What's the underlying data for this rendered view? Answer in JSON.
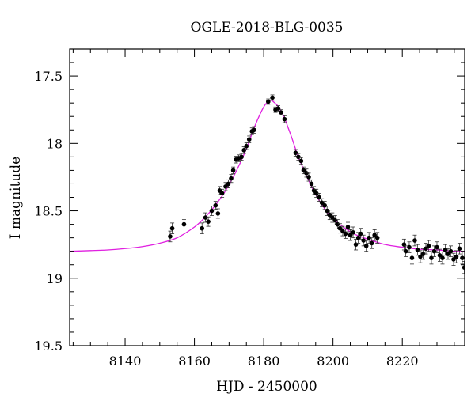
{
  "chart_data": {
    "type": "scatter",
    "title": "OGLE-2018-BLG-0035",
    "xlabel": "HJD - 2450000",
    "ylabel": "I magnitude",
    "xlim": [
      8124,
      8238
    ],
    "ylim": [
      19.5,
      17.3
    ],
    "y_inverted": true,
    "grid": false,
    "x_major_ticks": [
      8140,
      8160,
      8180,
      8200,
      8220
    ],
    "x_tick_labels": [
      "8140",
      "8160",
      "8180",
      "8200",
      "8220"
    ],
    "y_major_ticks": [
      17.5,
      18,
      18.5,
      19,
      19.5
    ],
    "y_tick_labels": [
      "17.5",
      "18",
      "18.5",
      "19",
      "19.5"
    ],
    "colors": {
      "points": "#000000",
      "model": "#e020e0"
    },
    "series": [
      {
        "kind": "points_with_errorbars",
        "x": [
          8153,
          8153.6,
          8157,
          8162.2,
          8163.2,
          8164,
          8165,
          8166.1,
          8166.8,
          8167.3,
          8168,
          8169,
          8169.8,
          8170.6,
          8171.2,
          8172,
          8172.8,
          8173.6,
          8174.3,
          8175,
          8175.8,
          8176.6,
          8177.2,
          8181.3,
          8182.5,
          8183.4,
          8184.2,
          8185,
          8186,
          8189.2,
          8190,
          8190.8,
          8191.5,
          8192.3,
          8193,
          8193.8,
          8194.5,
          8195.2,
          8196,
          8196.8,
          8197.6,
          8198.3,
          8199,
          8199.8,
          8200.6,
          8201.3,
          8202,
          8202.8,
          8203.6,
          8204.3,
          8205,
          8205.8,
          8206.6,
          8207.3,
          8208,
          8208.8,
          8209.6,
          8210.4,
          8211.2,
          8212,
          8212.8,
          8220.5,
          8221,
          8222,
          8222.8,
          8223.6,
          8224.4,
          8225.2,
          8226,
          8226.8,
          8227.6,
          8228.4,
          8229.2,
          8230,
          8230.8,
          8231.6,
          8232.4,
          8233.2,
          8234,
          8234.8,
          8235.6,
          8236.5,
          8237.3,
          8237.9
        ],
        "y": [
          18.69,
          18.63,
          18.6,
          18.63,
          18.55,
          18.58,
          18.5,
          18.46,
          18.52,
          18.35,
          18.37,
          18.32,
          18.3,
          18.26,
          18.2,
          18.12,
          18.11,
          18.1,
          18.05,
          18.02,
          17.97,
          17.91,
          17.9,
          17.69,
          17.66,
          17.75,
          17.74,
          17.77,
          17.82,
          18.07,
          18.1,
          18.13,
          18.2,
          18.22,
          18.25,
          18.3,
          18.35,
          18.37,
          18.4,
          18.44,
          18.46,
          18.5,
          18.53,
          18.55,
          18.57,
          18.6,
          18.63,
          18.65,
          18.67,
          18.62,
          18.68,
          18.66,
          18.75,
          18.7,
          18.67,
          18.72,
          18.76,
          18.7,
          18.74,
          18.68,
          18.7,
          18.75,
          18.8,
          18.77,
          18.85,
          18.72,
          18.79,
          18.84,
          18.82,
          18.78,
          18.76,
          18.85,
          18.8,
          18.77,
          18.83,
          18.85,
          18.79,
          18.82,
          18.8,
          18.86,
          18.84,
          18.78,
          18.85,
          18.92
        ],
        "yerr": [
          0.04,
          0.04,
          0.035,
          0.04,
          0.035,
          0.035,
          0.035,
          0.03,
          0.035,
          0.03,
          0.03,
          0.03,
          0.03,
          0.03,
          0.025,
          0.025,
          0.025,
          0.025,
          0.025,
          0.025,
          0.025,
          0.025,
          0.025,
          0.02,
          0.02,
          0.02,
          0.02,
          0.02,
          0.025,
          0.025,
          0.025,
          0.025,
          0.025,
          0.03,
          0.03,
          0.03,
          0.03,
          0.03,
          0.03,
          0.03,
          0.03,
          0.035,
          0.035,
          0.035,
          0.035,
          0.035,
          0.035,
          0.035,
          0.035,
          0.035,
          0.04,
          0.04,
          0.04,
          0.04,
          0.04,
          0.04,
          0.04,
          0.04,
          0.04,
          0.04,
          0.04,
          0.04,
          0.04,
          0.04,
          0.045,
          0.04,
          0.04,
          0.045,
          0.04,
          0.04,
          0.04,
          0.045,
          0.04,
          0.04,
          0.045,
          0.045,
          0.04,
          0.04,
          0.04,
          0.045,
          0.045,
          0.04,
          0.045,
          0.045
        ]
      },
      {
        "kind": "model_curve",
        "x": [
          8124,
          8130,
          8135,
          8140,
          8145,
          8150,
          8155,
          8160,
          8163,
          8166,
          8169,
          8172,
          8175,
          8177,
          8179,
          8180.5,
          8182,
          8183,
          8184,
          8185,
          8186,
          8187,
          8188,
          8190,
          8192,
          8195,
          8198,
          8200,
          8203,
          8206,
          8210,
          8215,
          8220,
          8225,
          8230,
          8235,
          8238
        ],
        "y": [
          18.8,
          18.795,
          18.79,
          18.78,
          18.765,
          18.74,
          18.7,
          18.62,
          18.55,
          18.46,
          18.35,
          18.21,
          18.04,
          17.9,
          17.78,
          17.71,
          17.68,
          17.695,
          17.72,
          17.76,
          17.81,
          17.88,
          17.95,
          18.1,
          18.22,
          18.38,
          18.5,
          18.56,
          18.62,
          18.67,
          18.71,
          18.75,
          18.77,
          18.785,
          18.79,
          18.8,
          18.8
        ]
      }
    ]
  }
}
